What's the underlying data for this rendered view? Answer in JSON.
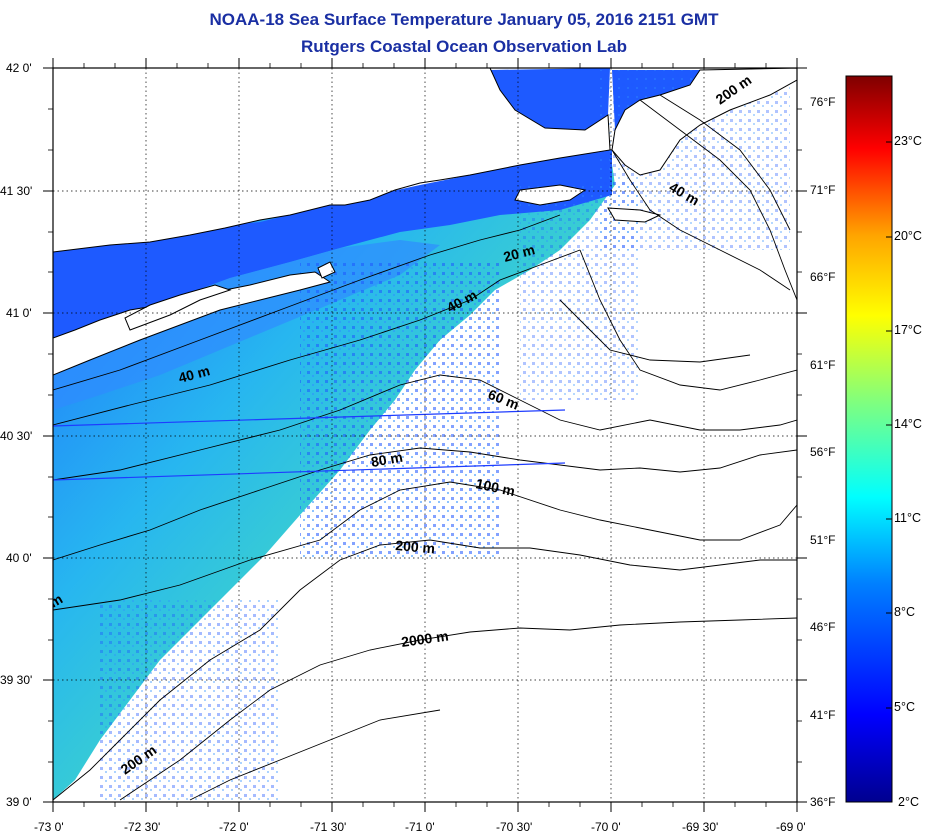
{
  "header": {
    "title": "NOAA-18 Sea Surface Temperature January 05, 2016 2151 GMT",
    "subtitle": "Rutgers Coastal Ocean Observation Lab"
  },
  "axes": {
    "lon_labels": [
      "-73 0'",
      "-72 30'",
      "-72 0'",
      "-71 30'",
      "-71 0'",
      "-70 30'",
      "-70 0'",
      "-69 30'",
      "-69 0'"
    ],
    "lat_labels": [
      "42 0'",
      "41 30'",
      "41 0'",
      "40 30'",
      "40 0'",
      "39 30'",
      "39 0'"
    ],
    "fahrenheit_labels": [
      "76°F",
      "71°F",
      "66°F",
      "61°F",
      "56°F",
      "51°F",
      "46°F",
      "41°F",
      "36°F"
    ]
  },
  "colorbar": {
    "celsius_labels": [
      "23°C",
      "20°C",
      "17°C",
      "14°C",
      "11°C",
      "8°C",
      "5°C",
      "2°C"
    ],
    "colors": [
      "#7f0000",
      "#ff0000",
      "#ffa500",
      "#ffff00",
      "#7fff7f",
      "#00ffff",
      "#007fff",
      "#0000ff",
      "#00008f"
    ]
  },
  "contours": {
    "labels": [
      "200 m",
      "40 m",
      "20 m",
      "40 m",
      "40 m",
      "60 m",
      "80 m",
      "100 m",
      "200 m",
      "2000 m",
      "200 m",
      "m"
    ]
  },
  "colors": {
    "title": "#1a2fa3",
    "land": "#ffffff",
    "water_cold": "#1e5aff",
    "water_warm": "#3fd0d0"
  }
}
